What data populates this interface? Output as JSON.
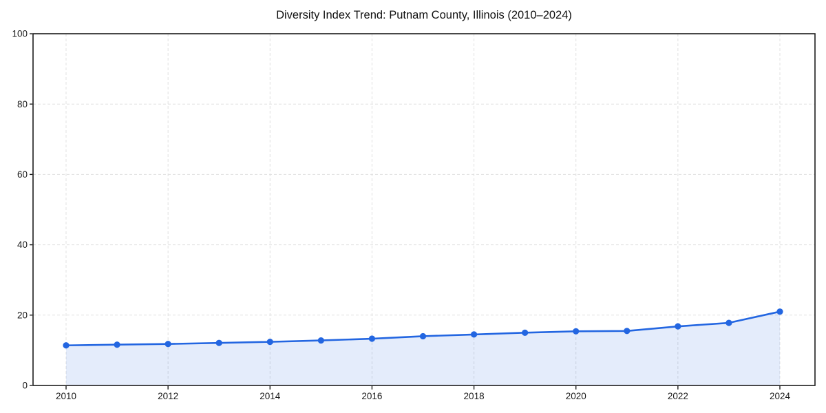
{
  "chart_data": {
    "type": "area",
    "title": "Diversity Index Trend: Putnam County, Illinois (2010–2024)",
    "x": [
      2010,
      2011,
      2012,
      2013,
      2014,
      2015,
      2016,
      2017,
      2018,
      2019,
      2020,
      2021,
      2022,
      2023,
      2024
    ],
    "series": [
      {
        "name": "Diversity Index",
        "values": [
          11.4,
          11.6,
          11.8,
          12.1,
          12.4,
          12.8,
          13.3,
          14.0,
          14.5,
          15.0,
          15.4,
          15.5,
          16.8,
          17.8,
          21.0
        ]
      }
    ],
    "xlabel": "",
    "ylabel": "",
    "xlim": [
      2009.35,
      2024.69
    ],
    "ylim": [
      0,
      100
    ],
    "xticks": [
      2010,
      2012,
      2014,
      2016,
      2018,
      2020,
      2022,
      2024
    ],
    "yticks": [
      0,
      20,
      40,
      60,
      80,
      100
    ],
    "grid": true,
    "grid_style": "dashed",
    "legend": "none",
    "markers": true,
    "colors": {
      "line": "#2366e1",
      "marker": "#2366e1",
      "fill": "#2366e1",
      "fill_opacity": 0.12,
      "grid": "#e0e0e0",
      "axis": "#1c1c1c",
      "text": "#1a1a1a",
      "background": "#ffffff"
    }
  }
}
